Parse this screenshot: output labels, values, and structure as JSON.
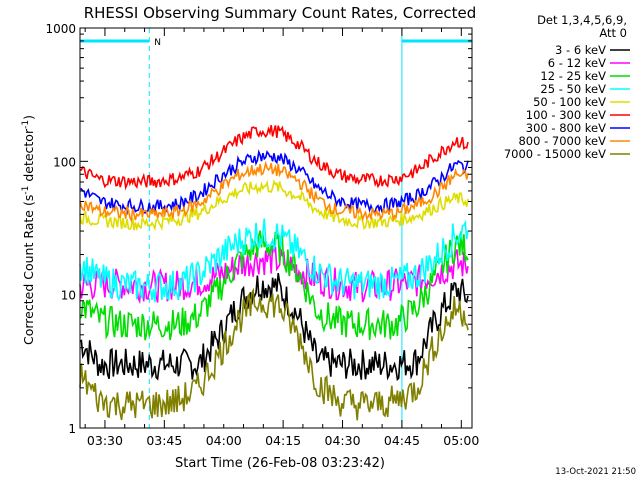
{
  "chart_data": {
    "type": "line",
    "title": "RHESSI Observing Summary Count Rates, Corrected",
    "ylabel_main": "Corrected Count Rate (s",
    "ylabel_sup1": "-1",
    "ylabel_mid": " detector",
    "ylabel_sup2": "-1",
    "ylabel_end": ")",
    "xlabel": "Start Time (26-Feb-08 03:23:42)",
    "yscale": "log",
    "ylim": [
      1,
      1000
    ],
    "xlim_minutes": [
      0,
      99
    ],
    "y_ticks": [
      "1",
      "10",
      "100",
      "1000"
    ],
    "x_ticks": [
      {
        "label": "03:30",
        "minute": 6.3
      },
      {
        "label": "03:45",
        "minute": 21.3
      },
      {
        "label": "04:00",
        "minute": 36.3
      },
      {
        "label": "04:15",
        "minute": 51.3
      },
      {
        "label": "04:30",
        "minute": 66.3
      },
      {
        "label": "04:45",
        "minute": 81.3
      },
      {
        "label": "05:00",
        "minute": 96.3
      }
    ],
    "legend_title": [
      "Det 1,3,4,5,6,9,",
      "Att 0"
    ],
    "legend_placement": "right",
    "marker_label": "N",
    "night_intervals": [
      [
        0,
        17.5
      ],
      [
        81.3,
        99
      ]
    ],
    "series": [
      {
        "name": "3 - 6 keV",
        "color": "#000000",
        "x": [
          0,
          5,
          10,
          15,
          20,
          25,
          30,
          35,
          40,
          45,
          50,
          55,
          60,
          65,
          70,
          75,
          80,
          85,
          90,
          95,
          98
        ],
        "y": [
          4.5,
          3.0,
          3.0,
          3.0,
          3.0,
          3.0,
          3.0,
          4.8,
          8.5,
          12.0,
          11.5,
          7.0,
          3.2,
          3.0,
          3.0,
          3.0,
          3.0,
          3.2,
          6.5,
          11.0,
          9.5
        ]
      },
      {
        "name": "6 - 12 keV",
        "color": "#ff00ff",
        "x": [
          0,
          5,
          10,
          15,
          20,
          25,
          30,
          35,
          40,
          45,
          50,
          55,
          60,
          65,
          70,
          75,
          80,
          85,
          90,
          95,
          98
        ],
        "y": [
          11.5,
          12.0,
          12.0,
          11.8,
          11.5,
          11.8,
          12.5,
          14.0,
          16.5,
          18.5,
          18.0,
          15.5,
          13.0,
          12.0,
          11.5,
          11.5,
          12.0,
          12.5,
          14.5,
          17.0,
          16.5
        ]
      },
      {
        "name": "12 - 25 keV",
        "color": "#00dd00",
        "x": [
          0,
          5,
          10,
          15,
          20,
          25,
          30,
          35,
          40,
          45,
          50,
          55,
          60,
          65,
          70,
          75,
          80,
          85,
          90,
          95,
          98
        ],
        "y": [
          8.5,
          6.5,
          6.0,
          6.0,
          6.0,
          6.0,
          7.0,
          11.0,
          18.0,
          24.0,
          23.0,
          15.0,
          7.5,
          6.2,
          6.0,
          6.0,
          6.0,
          8.0,
          14.0,
          24.0,
          22.0
        ]
      },
      {
        "name": "25 - 50 keV",
        "color": "#00ffff",
        "x": [
          0,
          5,
          10,
          15,
          20,
          25,
          30,
          35,
          40,
          45,
          50,
          55,
          60,
          65,
          70,
          75,
          80,
          85,
          90,
          95,
          98
        ],
        "y": [
          17.0,
          13.0,
          12.0,
          11.5,
          11.5,
          12.0,
          14.0,
          19.0,
          25.0,
          29.0,
          28.0,
          21.0,
          15.0,
          12.5,
          12.0,
          12.0,
          12.5,
          14.0,
          19.0,
          28.0,
          33.0
        ]
      },
      {
        "name": "50 - 100 keV",
        "color": "#dddd00",
        "x": [
          0,
          5,
          10,
          15,
          20,
          25,
          30,
          35,
          40,
          45,
          50,
          55,
          60,
          65,
          70,
          75,
          80,
          85,
          90,
          95,
          98
        ],
        "y": [
          38.0,
          36.0,
          35.0,
          34.0,
          35.0,
          37.0,
          41.0,
          50.0,
          60.0,
          65.0,
          64.0,
          55.0,
          43.0,
          37.0,
          35.0,
          35.0,
          36.0,
          39.0,
          46.0,
          53.0,
          50.0
        ]
      },
      {
        "name": "100 - 300 keV",
        "color": "#ff0000",
        "x": [
          0,
          5,
          10,
          15,
          20,
          25,
          30,
          35,
          40,
          45,
          50,
          55,
          60,
          65,
          70,
          75,
          80,
          85,
          90,
          95,
          98
        ],
        "y": [
          85.0,
          73.0,
          71.0,
          70.0,
          71.0,
          75.0,
          85.0,
          110.0,
          145.0,
          170.0,
          168.0,
          135.0,
          98.0,
          80.0,
          73.0,
          72.0,
          74.0,
          85.0,
          110.0,
          145.0,
          130.0
        ]
      },
      {
        "name": "300 - 800 keV",
        "color": "#0000ff",
        "x": [
          0,
          5,
          10,
          15,
          20,
          25,
          30,
          35,
          40,
          45,
          50,
          55,
          60,
          65,
          70,
          75,
          80,
          85,
          90,
          95,
          98
        ],
        "y": [
          62.0,
          50.0,
          47.0,
          46.0,
          46.0,
          48.0,
          56.0,
          75.0,
          95.0,
          110.0,
          108.0,
          88.0,
          63.0,
          51.0,
          47.0,
          46.0,
          48.0,
          55.0,
          70.0,
          95.0,
          90.0
        ]
      },
      {
        "name": "800 - 7000 keV",
        "color": "#ff8800",
        "x": [
          0,
          5,
          10,
          15,
          20,
          25,
          30,
          35,
          40,
          45,
          50,
          55,
          60,
          65,
          70,
          75,
          80,
          85,
          90,
          95,
          98
        ],
        "y": [
          50.0,
          42.0,
          41.0,
          40.0,
          40.0,
          42.0,
          48.0,
          62.0,
          79.0,
          88.0,
          86.0,
          72.0,
          52.0,
          43.0,
          41.0,
          40.0,
          41.0,
          47.0,
          58.0,
          80.0,
          76.0
        ]
      },
      {
        "name": "7000 - 15000 keV",
        "color": "#808000",
        "x": [
          0,
          5,
          10,
          15,
          20,
          25,
          30,
          35,
          40,
          45,
          50,
          55,
          60,
          65,
          70,
          75,
          80,
          85,
          90,
          95,
          98
        ],
        "y": [
          2.5,
          1.6,
          1.5,
          1.5,
          1.5,
          1.6,
          2.0,
          3.5,
          6.5,
          9.0,
          8.5,
          5.0,
          2.2,
          1.6,
          1.5,
          1.5,
          1.6,
          2.0,
          4.5,
          8.0,
          7.0
        ]
      }
    ]
  },
  "timestamp": "13-Oct-2021 21:50"
}
